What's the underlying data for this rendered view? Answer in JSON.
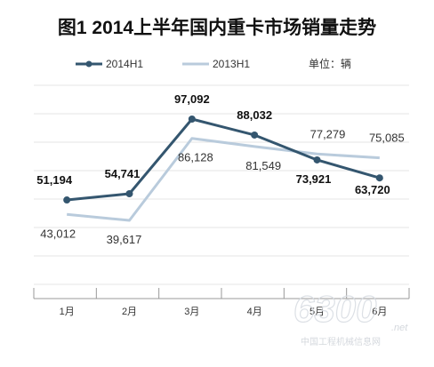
{
  "chart_data": {
    "type": "line",
    "title": "图1  2014上半年国内重卡市场销量走势",
    "unit_label": "单位：辆",
    "categories": [
      "1月",
      "2月",
      "3月",
      "4月",
      "5月",
      "6月"
    ],
    "series": [
      {
        "name": "2014H1",
        "values": [
          51194,
          54741,
          97092,
          88032,
          73921,
          63720
        ],
        "labels": [
          "51,194",
          "54,741",
          "97,092",
          "88,032",
          "73,921",
          "63,720"
        ],
        "color": "#34566f",
        "markers": true
      },
      {
        "name": "2013H1",
        "values": [
          43012,
          39617,
          86128,
          81549,
          77279,
          75085
        ],
        "labels": [
          "43,012",
          "39,617",
          "86,128",
          "81,549",
          "77,279",
          "75,085"
        ],
        "color": "#b9cbdc",
        "markers": false
      }
    ],
    "ylim": [
      0,
      110000
    ],
    "grid": true,
    "legend_position": "top"
  },
  "watermark": {
    "number": "6300",
    "net": ".net",
    "site": "中国工程机械信息网"
  }
}
